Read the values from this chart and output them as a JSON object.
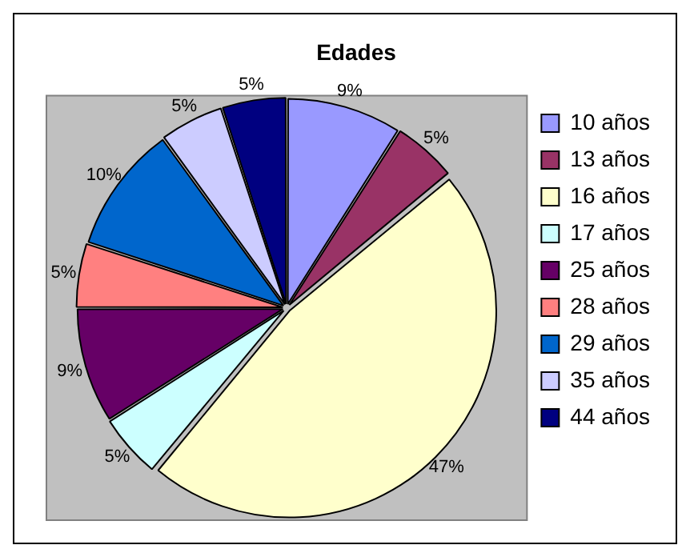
{
  "chart_data": {
    "type": "pie",
    "title": "Edades",
    "categories": [
      "10 años",
      "13 años",
      "16 años",
      "17 años",
      "25 años",
      "28 años",
      "29 años",
      "35 años",
      "44 años"
    ],
    "values": [
      9,
      5,
      47,
      5,
      9,
      5,
      10,
      5,
      5
    ],
    "value_labels": [
      "9%",
      "5%",
      "47%",
      "5%",
      "9%",
      "5%",
      "10%",
      "5%",
      "5%"
    ],
    "colors": [
      "#9999ff",
      "#993366",
      "#ffffcc",
      "#ccffff",
      "#660066",
      "#ff8080",
      "#0066cc",
      "#ccccff",
      "#000080"
    ],
    "legend": "right"
  }
}
